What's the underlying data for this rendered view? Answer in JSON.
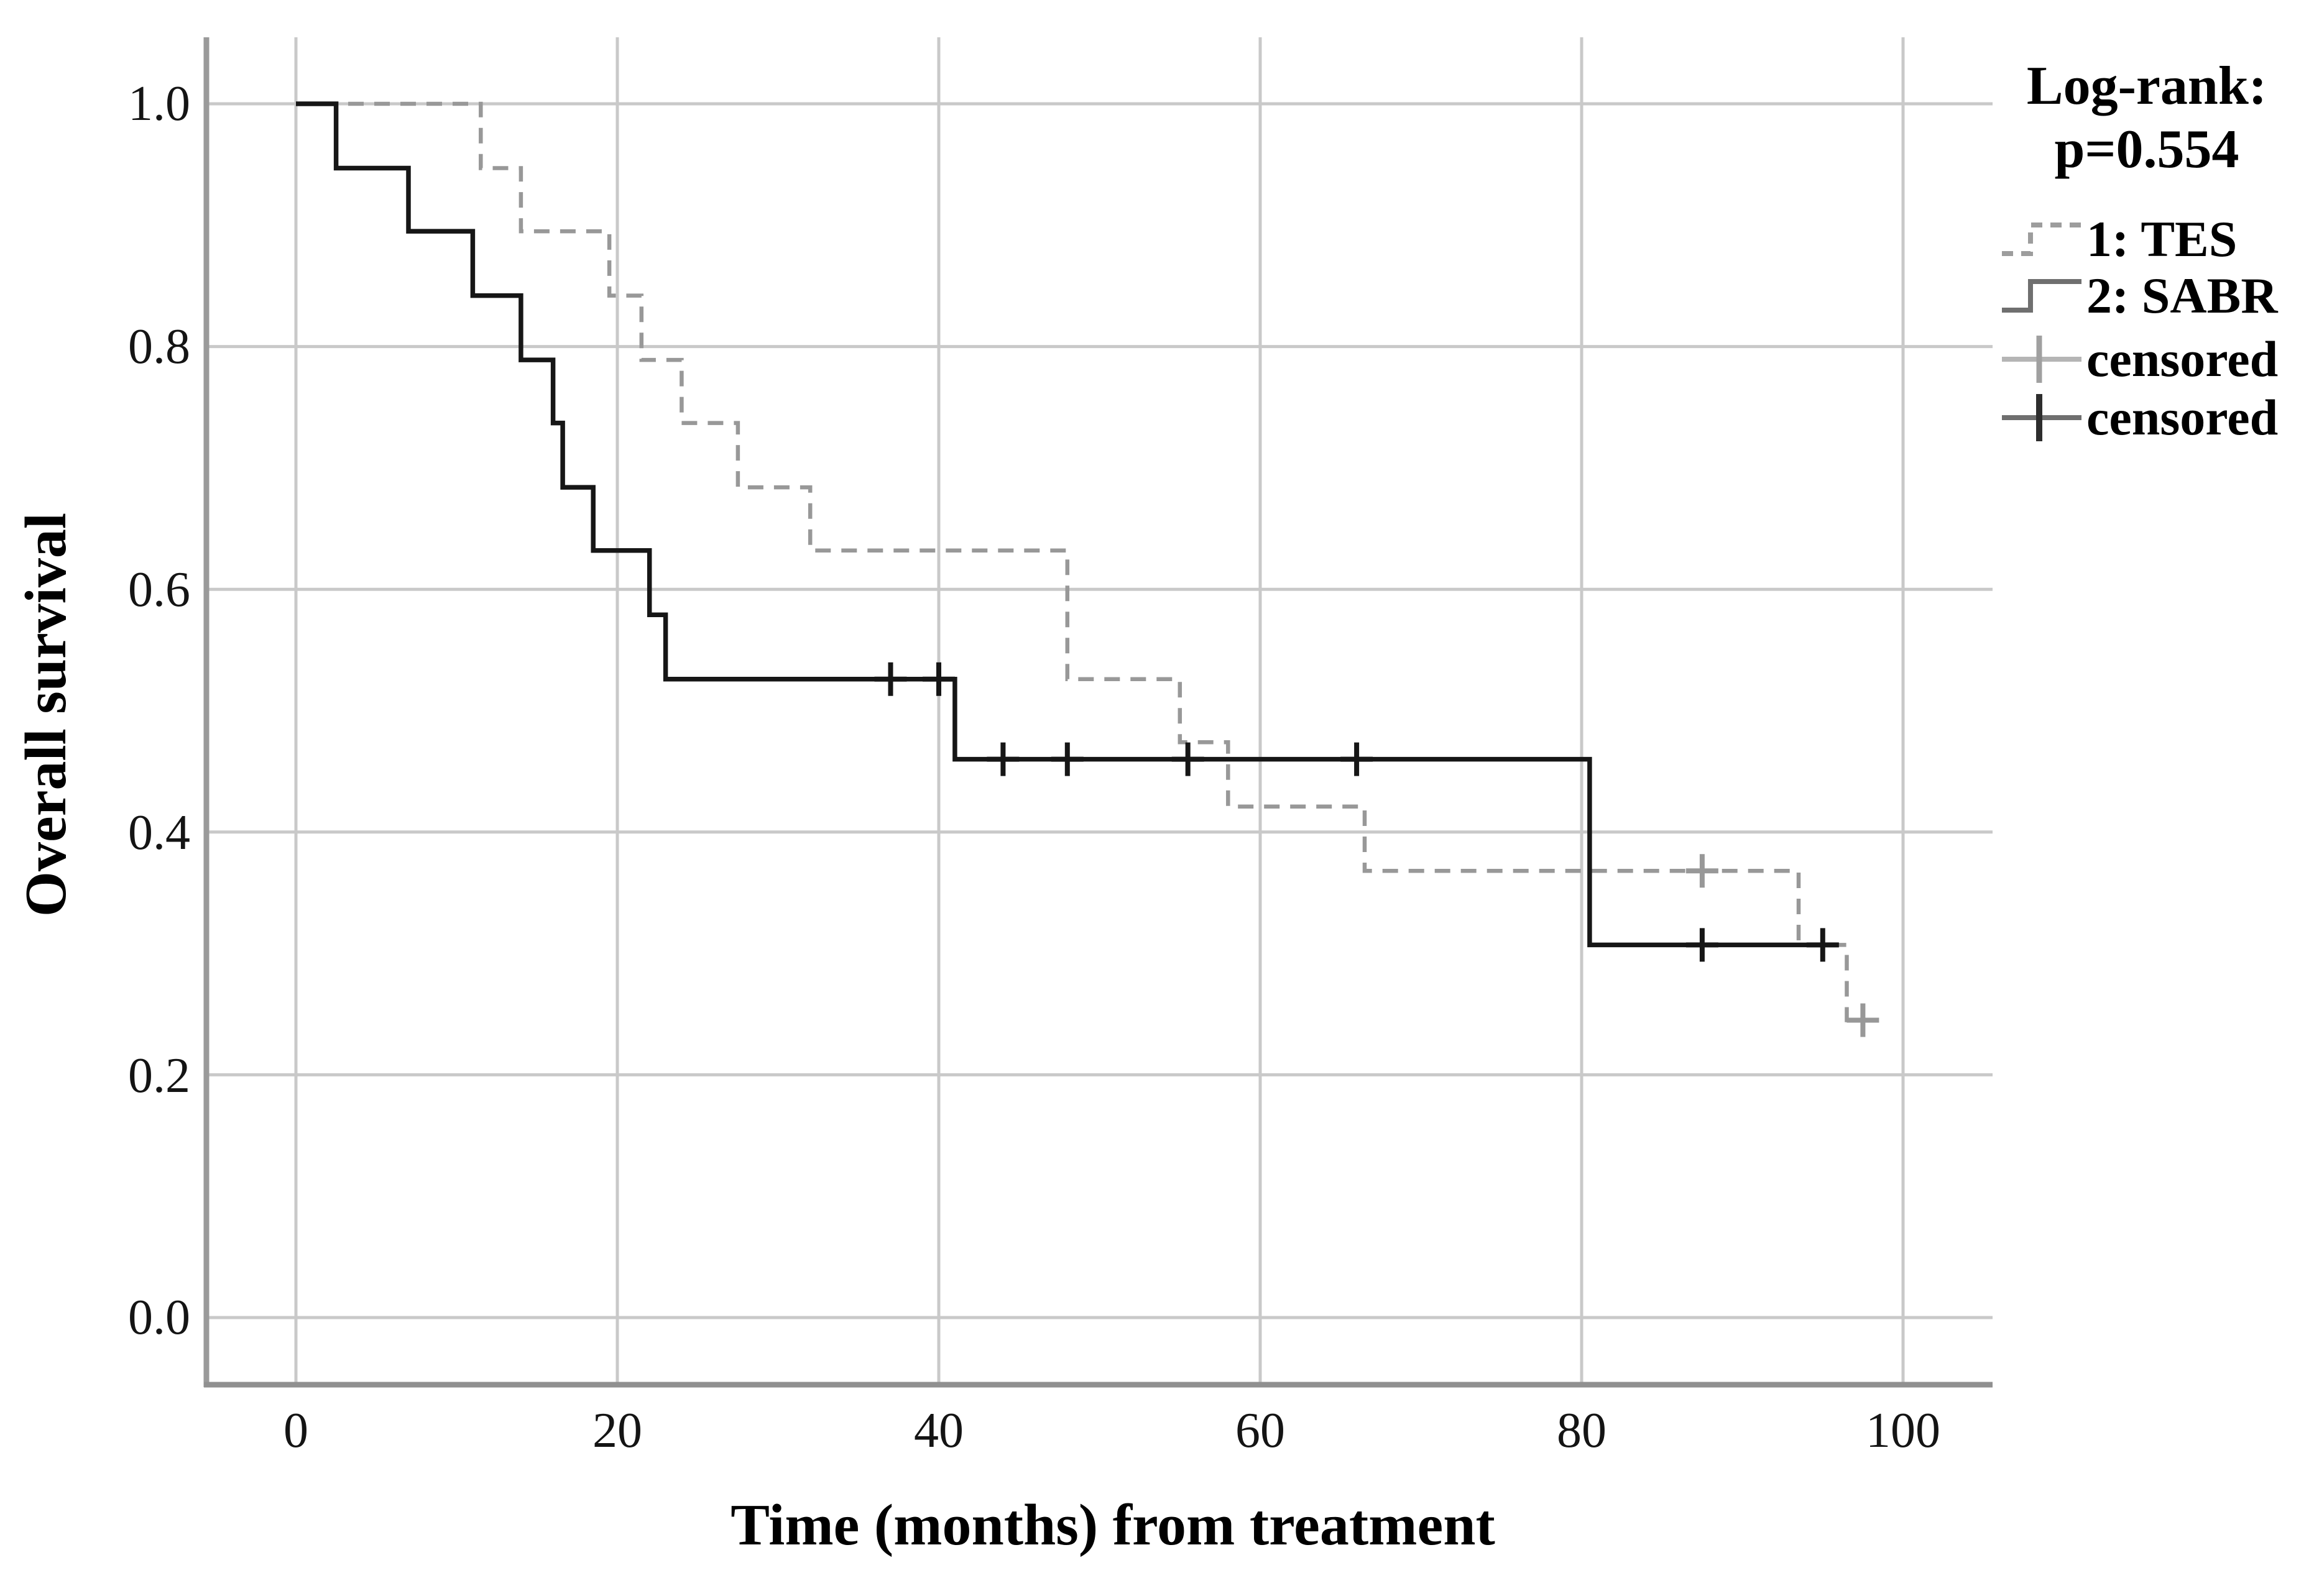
{
  "legend": {
    "heading_line1": "Log-rank:",
    "heading_line2": "p=0.554",
    "items": [
      {
        "label": "1: TES",
        "symbol": "step-dashed-gray"
      },
      {
        "label": "2: SABR",
        "symbol": "step-solid-dark"
      },
      {
        "label": "censored",
        "symbol": "plus-gray"
      },
      {
        "label": "censored",
        "symbol": "plus-black"
      }
    ]
  },
  "chart_data": {
    "type": "line",
    "subtype": "kaplan-meier-step",
    "title": "",
    "xlabel": "Time (months) from treatment",
    "ylabel": "Overall survival",
    "xlim": [
      -5.6,
      105.6
    ],
    "ylim": [
      -0.055,
      1.055
    ],
    "x_ticks": [
      0,
      20,
      40,
      60,
      80,
      100
    ],
    "x_tick_labels": [
      "0",
      "20",
      "40",
      "60",
      "80",
      "100"
    ],
    "y_ticks": [
      0.0,
      0.2,
      0.4,
      0.6,
      0.8,
      1.0
    ],
    "y_tick_labels": [
      "0.0",
      "0.2",
      "0.4",
      "0.6",
      "0.8",
      "1.0"
    ],
    "grid": true,
    "legend_position": "top-right",
    "annotation": "Log-rank: p=0.554",
    "series": [
      {
        "name": "1: TES",
        "color": "#989898",
        "line_style": "dashed",
        "steps": [
          [
            0,
            1.0
          ],
          [
            11.5,
            0.947
          ],
          [
            14,
            0.895
          ],
          [
            19.5,
            0.842
          ],
          [
            21.5,
            0.789
          ],
          [
            24,
            0.737
          ],
          [
            27.5,
            0.684
          ],
          [
            32,
            0.632
          ],
          [
            48,
            0.526
          ],
          [
            55,
            0.474
          ],
          [
            58,
            0.421
          ],
          [
            66.5,
            0.368
          ],
          [
            93.5,
            0.307
          ],
          [
            96.5,
            0.245
          ]
        ],
        "end_time": 98.5,
        "censored": [
          [
            87.5,
            0.368
          ],
          [
            97.5,
            0.245
          ]
        ]
      },
      {
        "name": "2: SABR",
        "color": "#161616",
        "line_style": "solid",
        "steps": [
          [
            0,
            1.0
          ],
          [
            2.5,
            0.947
          ],
          [
            7,
            0.895
          ],
          [
            11,
            0.842
          ],
          [
            14,
            0.789
          ],
          [
            16,
            0.737
          ],
          [
            16.6,
            0.684
          ],
          [
            18.5,
            0.632
          ],
          [
            22,
            0.579
          ],
          [
            23,
            0.526
          ],
          [
            41,
            0.46
          ],
          [
            80.5,
            0.307
          ]
        ],
        "end_time": 96,
        "censored": [
          [
            37,
            0.526
          ],
          [
            40,
            0.526
          ],
          [
            44,
            0.46
          ],
          [
            48,
            0.46
          ],
          [
            55.5,
            0.46
          ],
          [
            66,
            0.46
          ],
          [
            87.5,
            0.307
          ],
          [
            95,
            0.307
          ]
        ]
      }
    ],
    "style": {
      "grid_color": "#c9c9c9",
      "axis_color": "#9a9a9a",
      "background": "#ffffff",
      "text_color": "#000000",
      "legend_sabr_sample": "#6f6f6f",
      "legend_tes_sample": "#9d9d9d",
      "legend_plus_gray": "#a6a6a6",
      "legend_plus_black": "#2d2d2d"
    }
  }
}
